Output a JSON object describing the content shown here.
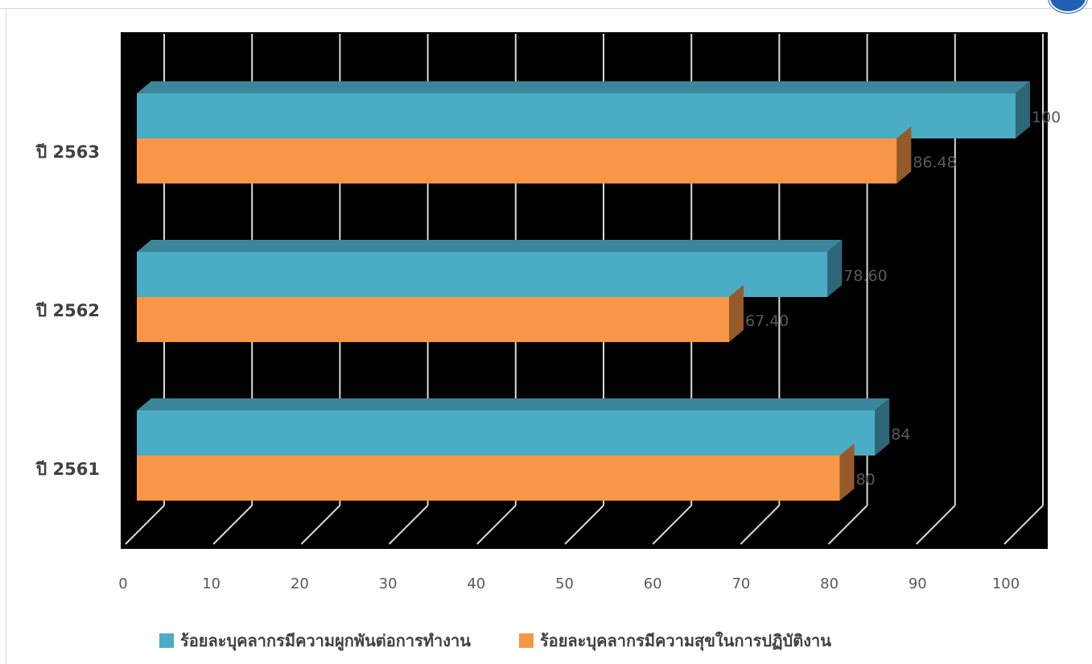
{
  "chart_data": {
    "type": "bar",
    "orientation": "horizontal",
    "categories": [
      "ปี 2561",
      "ปี 2562",
      "ปี 2563"
    ],
    "series": [
      {
        "name": "ร้อยละบุคลากรมีความผูกพันต่อการทำงาน",
        "values": [
          84,
          78.6,
          100
        ],
        "labels": [
          "84",
          "78.60",
          "100"
        ],
        "color": "#4bacc6"
      },
      {
        "name": "ร้อยละบุคลากรมีความสุขในการปฏิบัติงาน",
        "values": [
          80,
          67.4,
          86.48
        ],
        "labels": [
          "80",
          "67.40",
          "86.48"
        ],
        "color": "#f79646"
      }
    ],
    "xlim": [
      0,
      100
    ],
    "xticks": [
      "0",
      "10",
      "20",
      "30",
      "40",
      "50",
      "60",
      "70",
      "80",
      "90",
      "100"
    ],
    "grid": true,
    "legend_position": "bottom",
    "plot_background": "#000000"
  }
}
